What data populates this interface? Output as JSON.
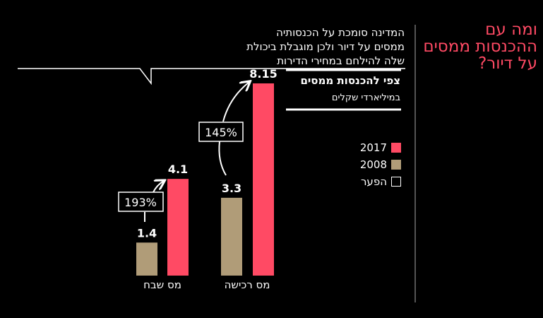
{
  "headline": [
    "ומה עם",
    "ההכנסות ממסים",
    "על דיור?"
  ],
  "callout": [
    "המדינה סומכת על הכנסותיה",
    "ממסים על דיור ולכן מוגבלת ביכולת",
    "שלה להילחם במחירי הדירות"
  ],
  "chart_data": {
    "type": "bar",
    "title": "צפי להכנסות ממסים",
    "subtitle": "במיליארדי שקלים",
    "categories": [
      "מס שבח",
      "מס רכישה"
    ],
    "series": [
      {
        "name": "2008",
        "color": "#b09c78",
        "values": [
          1.4,
          3.3
        ]
      },
      {
        "name": "2017",
        "color": "#ff4a64",
        "values": [
          4.1,
          8.15
        ]
      }
    ],
    "value_labels": [
      [
        "1.4",
        "3.3"
      ],
      [
        "4.1",
        "8.15"
      ]
    ],
    "gaps": [
      "193%",
      "145%"
    ],
    "legend": [
      {
        "label": "2017",
        "color": "#ff4a64"
      },
      {
        "label": "2008",
        "color": "#b09c78"
      },
      {
        "label": "הפער",
        "color": "none"
      }
    ],
    "legend_position": "right",
    "ylim": [
      0,
      8.15
    ]
  }
}
